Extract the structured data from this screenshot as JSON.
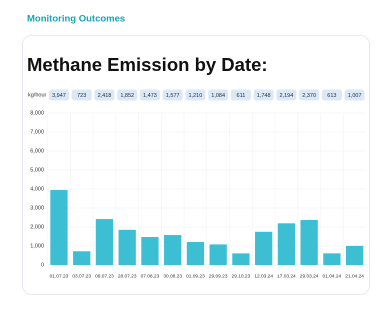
{
  "header": "Monitoring Outcomes",
  "chart_data": {
    "type": "bar",
    "title": "Methane Emission by Date:",
    "y_label": "kg/hour",
    "categories": [
      "01.07.23",
      "03.07.23",
      "09.07.23",
      "28.07.23",
      "07.08.23",
      "30.08.23",
      "01.09.23",
      "29.09.23",
      "29.10.23",
      "12.03.24",
      "17.03.24",
      "29.03.24",
      "01.04.24",
      "21.04.24"
    ],
    "values": [
      3947,
      723,
      2418,
      1852,
      1473,
      1577,
      1210,
      1084,
      611,
      1748,
      2194,
      2370,
      613,
      1007
    ],
    "value_labels": [
      "3,947",
      "723",
      "2,418",
      "1,852",
      "1,473",
      "1,577",
      "1,210",
      "1,084",
      "611",
      "1,748",
      "2,194",
      "2,370",
      "613",
      "1,007"
    ],
    "color": "#3dbfd3",
    "ylim": [
      0,
      8000
    ],
    "yticks": [
      0,
      {
        "value": 1000,
        "label": "1,000"
      },
      {
        "value": 2000,
        "label": "2,000"
      },
      {
        "value": 3000,
        "label": "3,000"
      },
      {
        "value": 4000,
        "label": "4,000"
      },
      {
        "value": 5000,
        "label": "5,000"
      },
      {
        "value": 6000,
        "label": "6,000"
      },
      {
        "value": 7000,
        "label": "7,000"
      },
      {
        "value": 8000,
        "label": "8,000"
      }
    ],
    "grid": true
  }
}
